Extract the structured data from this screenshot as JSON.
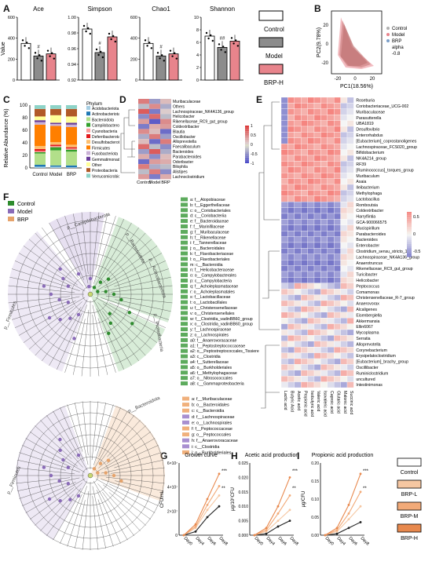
{
  "panel_labels": {
    "A": "A",
    "B": "B",
    "C": "C",
    "D": "D",
    "E": "E",
    "F": "F",
    "G": "G",
    "H": "H",
    "I": "I"
  },
  "panel_a": {
    "legend": [
      "Control",
      "Model",
      "BRP-H"
    ],
    "colors": {
      "Control": "#ffffff",
      "Model": "#8c8c8c",
      "BRP-H": "#e8848c"
    },
    "ylabel": "Value",
    "subplots": [
      {
        "title": "Ace",
        "ylim": [
          0,
          600
        ],
        "ticks": [
          "0",
          "200",
          "400",
          "600"
        ],
        "values": [
          350,
          230,
          250
        ],
        "marks": [
          "",
          "#",
          ""
        ]
      },
      {
        "title": "Simpson",
        "ylim": [
          0.92,
          1.0
        ],
        "ticks": [
          "0.92",
          "0.94",
          "0.96",
          "0.98",
          "1.00"
        ],
        "values": [
          0.985,
          0.955,
          0.975
        ],
        "marks": [
          "",
          "#",
          ""
        ]
      },
      {
        "title": "Chao1",
        "ylim": [
          0,
          600
        ],
        "ticks": [
          "0",
          "200",
          "400",
          "600"
        ],
        "values": [
          350,
          230,
          250
        ],
        "marks": [
          "",
          "#",
          ""
        ]
      },
      {
        "title": "Shannon",
        "ylim": [
          0,
          10
        ],
        "ticks": [
          "0",
          "2",
          "4",
          "6",
          "8",
          "10"
        ],
        "values": [
          7.0,
          5.2,
          6.2
        ],
        "marks": [
          "",
          "##",
          ""
        ]
      }
    ]
  },
  "panel_b": {
    "xlabel": "PC1(18.56%)",
    "ylabel": "PC2(9.78%)",
    "xticks": [
      "-20",
      "0",
      "20"
    ],
    "yticks": [
      "-20",
      "0",
      "20"
    ],
    "legend": [
      "Control",
      "Model",
      "BRP"
    ],
    "alpha_label": "alpha",
    "alpha_value": "-0.8"
  },
  "panel_c": {
    "ylabel": "Relative Abundance (%)",
    "yticks": [
      "0",
      "20",
      "40",
      "60",
      "80",
      "100"
    ],
    "categories": [
      "Control",
      "Model",
      "BRP"
    ],
    "legend_title": "Phylum",
    "phyla": [
      "Acidobacteriota",
      "Actinobacteriota",
      "Bacteroidota",
      "Campilobacterota",
      "Cyanobacteria",
      "Deferribacterota",
      "Desulfobacterota",
      "Firmicutes",
      "Fusobacteriota",
      "Gemmatimonadota",
      "Other",
      "Proteobacteria",
      "Verrucomicrobiota"
    ],
    "phyla_colors": [
      "#a6cee3",
      "#1f78b4",
      "#b2df8a",
      "#33a02c",
      "#fb9a99",
      "#e31a1c",
      "#fdbf6f",
      "#ff7f00",
      "#cab2d6",
      "#6a3d9a",
      "#ffff99",
      "#b15928",
      "#8dd3c7"
    ]
  },
  "panel_d": {
    "columns": [
      "Control",
      "Model",
      "BRP"
    ],
    "rows": [
      "Muribaculaceae",
      "Others",
      "Lachnospiraceae_NK4A136_group",
      "Helicobacter",
      "Rikenellaceae_RC9_gut_group",
      "Coldextribacter",
      "Blautia",
      "Oscillobacter",
      "Alloprevotella",
      "Faecalibaculum",
      "Bacteroides",
      "Parabacteroides",
      "Odoribacter",
      "Bilophila",
      "Alistipes",
      "Lachnoclostridium"
    ],
    "scale_ticks": [
      "1",
      "0.5",
      "0",
      "-0.5",
      "-1"
    ]
  },
  "panel_e": {
    "columns": [
      "Lactic acid",
      "Butyric Acid",
      "Acetic acid",
      "Propionic acid",
      "Isobutyric acid",
      "Valeric acid",
      "Isovaleric acid",
      "Caproic acid",
      "Glutaric acid",
      "Malonic acid",
      "Succinic acid"
    ],
    "rows": [
      "Roseburia",
      "Coriobacteriaceae_UCG-002",
      "Muribaculaceae",
      "Parasutterella",
      "UBA1819",
      "Desulfovibrio",
      "Enterorhabdus",
      "[Eubacterium]_coprostanoligenes",
      "Lachnospiraceae_FCS020_group",
      "Bifidobacterium",
      "NK4A214_group",
      "RF39",
      "[Ruminococcus]_torques_group",
      "Muribaculum",
      "Asaia",
      "Ileibacterium",
      "Methylophaga",
      "Lactobacillus",
      "Romboutsia",
      "Coldextribacter",
      "Harryflintia",
      "GCA-900066575",
      "Mucispirillum",
      "Parabacteroides",
      "Bacteroides",
      "Enterobacter",
      "Clostridium_sensu_stricto_1",
      "Lachnospiraceae_NK4A136_group",
      "Anaerotruncus",
      "Rikenellaceae_RC9_gut_group",
      "Turicibacter",
      "Helicobacter",
      "Peptococcus",
      "Comamonas",
      "Christensenellaceae_R-7_group",
      "Anaerovorax",
      "Alcaligenes",
      "Eisenbergiella",
      "Akkermansia",
      "Ellin6067",
      "Mycoplasma",
      "Serratia",
      "Alloprevotella",
      "Corynebacterium",
      "Erysipelatoclostridium",
      "[Eubacterium]_brachy_group",
      "Oscillibacter",
      "Ruminiclostridium",
      "uncultured",
      "Intestinimonas"
    ],
    "scale_ticks": [
      "0.5",
      "0",
      "-0.5"
    ]
  },
  "panel_f_top": {
    "legend": [
      "Control",
      "Model",
      "BRP"
    ],
    "legend_colors": [
      "#2e8b2e",
      "#8a6bb8",
      "#e6a36b"
    ],
    "clade_labels": [
      "p__Campilobacterota",
      "p__Bacteroidota",
      "p__Actinobacteriota",
      "p__Proteobacteria",
      "p__Firmicutes"
    ],
    "entries": [
      "a: f__Atopobiaceae",
      "b: f__Eggerthellaceae",
      "c: o__Coriobacteriales",
      "d: c__Coriobacteriia",
      "e: f__Bacteroidaceae",
      "f: f__Marinifilaceae",
      "g: f__Muribaculaceae",
      "h: f__Rikenellaceae",
      "i: f__Tannerellaceae",
      "j: o__Bacteroidales",
      "k: f__Flavobacteriaceae",
      "l: o__Flavobacteriales",
      "m: c__Bacteroidia",
      "n: f__Helicobacteraceae",
      "o: o__Campylobacterales",
      "p: c__Campylobacteria",
      "q: f__Acholeplasmataceae",
      "r: o__Acholeplasmatales",
      "s: f__Lactobacillaceae",
      "t: o__Lactobacillales",
      "u: f__Christensenellaceae",
      "v: o__Christensenellales",
      "w: f__Clostridia_vadinBB60_group",
      "x: o__Clostridia_vadinBB60_group",
      "y: f__Lachnospiraceae",
      "z: o__Lachnospirales",
      "a0: f__Anaerovoracaceae",
      "a1: f__Peptostreptococcaceae",
      "a2: o__Peptostreptococcales_Tissierellales",
      "a3: c__Clostridia",
      "a4: f__Sutterellaceae",
      "a5: o__Burkholderiales",
      "a6: f__Methylophagaceae",
      "a7: o__Nitrosococcales",
      "a8: c__Gammaproteobacteria"
    ],
    "entry_colors": [
      "g",
      "g",
      "g",
      "g",
      "g",
      "g",
      "g",
      "g",
      "g",
      "g",
      "g",
      "g",
      "g",
      "g",
      "g",
      "g",
      "g",
      "g",
      "g",
      "g",
      "g",
      "g",
      "g",
      "g",
      "g",
      "g",
      "g",
      "g",
      "g",
      "g",
      "g",
      "g",
      "g",
      "g",
      "g"
    ]
  },
  "panel_f_bottom": {
    "clade_labels": [
      "p__Bacteroidota",
      "p__Firmicutes"
    ],
    "entries": [
      "a: f__Muribaculaceae",
      "b: o__Bacteroidales",
      "c: c__Bacteroidia",
      "d: f__Lachnospiraceae",
      "e: o__Lachnospirales",
      "f: f__Peptococcaceae",
      "g: o__Peptococcales",
      "h: f__Anaerovoracaceae",
      "i: c__Clostridia",
      "j: o__Burkholderiales"
    ],
    "entry_colors": [
      "o",
      "o",
      "o",
      "p",
      "p",
      "o",
      "o",
      "p",
      "p",
      "o"
    ]
  },
  "panel_g": {
    "title": "Growth curve",
    "ylabel": "CFU/mL",
    "yticks": [
      "0",
      "2×10⁷",
      "4×10⁷",
      "6×10⁷"
    ],
    "xticks": [
      "Day0",
      "Day4",
      "Day6",
      "Day8"
    ],
    "sig": [
      "***",
      "**"
    ]
  },
  "panel_h": {
    "title": "Acetic acid production",
    "ylabel": "μg/10⁶CFU",
    "yticks": [
      "0.000",
      "0.005",
      "0.010",
      "0.015",
      "0.020",
      "0.025"
    ],
    "xticks": [
      "Day0",
      "Day4",
      "Day6",
      "Day8"
    ],
    "sig": [
      "***",
      "**"
    ]
  },
  "panel_i": {
    "title": "Propionic acid production",
    "ylabel": "μg/CFU",
    "yticks": [
      "0.00",
      "0.05",
      "0.10",
      "0.15",
      "0.20"
    ],
    "xticks": [
      "Day0",
      "Day4",
      "Day6",
      "Day8"
    ],
    "sig": [
      "***",
      "**"
    ]
  },
  "lines_legend": {
    "items": [
      "Control",
      "BRP-L",
      "BRP-M",
      "BRP-H"
    ],
    "colors": [
      "#ffffff",
      "#f6c7a2",
      "#f2aa78",
      "#e8894e"
    ]
  }
}
